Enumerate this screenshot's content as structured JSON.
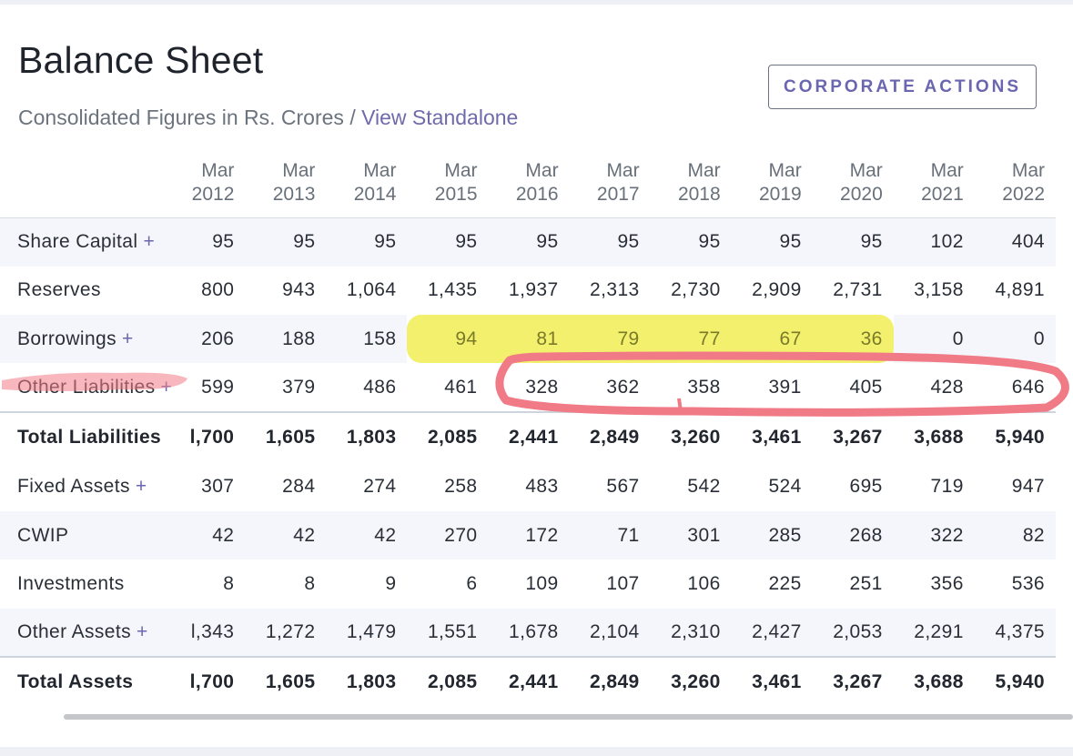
{
  "header": {
    "title": "Balance Sheet",
    "subtitle_prefix": "Consolidated Figures in Rs. Crores / ",
    "subtitle_link": "View Standalone",
    "action_button": "CORPORATE ACTIONS"
  },
  "table": {
    "columns": [
      {
        "month": "Mar",
        "year": "2012"
      },
      {
        "month": "Mar",
        "year": "2013"
      },
      {
        "month": "Mar",
        "year": "2014"
      },
      {
        "month": "Mar",
        "year": "2015"
      },
      {
        "month": "Mar",
        "year": "2016"
      },
      {
        "month": "Mar",
        "year": "2017"
      },
      {
        "month": "Mar",
        "year": "2018"
      },
      {
        "month": "Mar",
        "year": "2019"
      },
      {
        "month": "Mar",
        "year": "2020"
      },
      {
        "month": "Mar",
        "year": "2021"
      },
      {
        "month": "Mar",
        "year": "2022"
      }
    ],
    "expand_symbol": "+",
    "rows": [
      {
        "label": "Share Capital",
        "expandable": true,
        "values": [
          "95",
          "95",
          "95",
          "95",
          "95",
          "95",
          "95",
          "95",
          "95",
          "102",
          "404"
        ]
      },
      {
        "label": "Reserves",
        "expandable": false,
        "values": [
          "800",
          "943",
          "1,064",
          "1,435",
          "1,937",
          "2,313",
          "2,730",
          "2,909",
          "2,731",
          "3,158",
          "4,891"
        ]
      },
      {
        "label": "Borrowings",
        "expandable": true,
        "values": [
          "206",
          "188",
          "158",
          "94",
          "81",
          "79",
          "77",
          "67",
          "36",
          "0",
          "0"
        ]
      },
      {
        "label": "Other Liabilities",
        "expandable": true,
        "values": [
          "599",
          "379",
          "486",
          "461",
          "328",
          "362",
          "358",
          "391",
          "405",
          "428",
          "646"
        ]
      },
      {
        "label": "Total Liabilities",
        "expandable": false,
        "total": true,
        "values": [
          "l,700",
          "1,605",
          "1,803",
          "2,085",
          "2,441",
          "2,849",
          "3,260",
          "3,461",
          "3,267",
          "3,688",
          "5,940"
        ]
      },
      {
        "label": "Fixed Assets",
        "expandable": true,
        "values": [
          "307",
          "284",
          "274",
          "258",
          "483",
          "567",
          "542",
          "524",
          "695",
          "719",
          "947"
        ]
      },
      {
        "label": "CWIP",
        "expandable": false,
        "values": [
          "42",
          "42",
          "42",
          "270",
          "172",
          "71",
          "301",
          "285",
          "268",
          "322",
          "82"
        ]
      },
      {
        "label": "Investments",
        "expandable": false,
        "values": [
          "8",
          "8",
          "9",
          "6",
          "109",
          "107",
          "106",
          "225",
          "251",
          "356",
          "536"
        ]
      },
      {
        "label": "Other Assets",
        "expandable": true,
        "values": [
          "l,343",
          "1,272",
          "1,479",
          "1,551",
          "1,678",
          "2,104",
          "2,310",
          "2,427",
          "2,053",
          "2,291",
          "4,375"
        ]
      },
      {
        "label": "Total Assets",
        "expandable": false,
        "total": true,
        "values": [
          "l,700",
          "1,605",
          "1,803",
          "2,085",
          "2,441",
          "2,849",
          "3,260",
          "3,461",
          "3,267",
          "3,688",
          "5,940"
        ]
      }
    ]
  },
  "annotations": {
    "yellow_highlight": {
      "row": "Borrowings",
      "from_year": "2015",
      "to_year": "2020",
      "color": "#f0ee3c"
    },
    "red_marks": {
      "color": "#f07b86",
      "underline_row": "Other Liabilities",
      "circled_from_year": "2016",
      "circled_to_year": "2022"
    }
  }
}
